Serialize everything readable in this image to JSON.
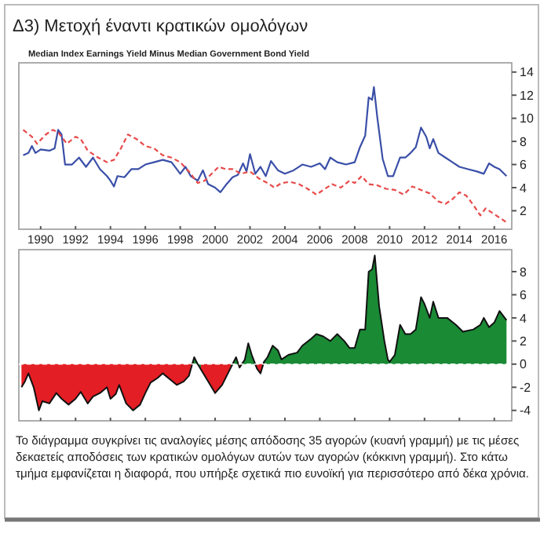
{
  "chart_data": [
    {
      "type": "line",
      "title": "Δ3) Μετοχή έναντι κρατικών ομολόγων",
      "subtitle": "Median Index Earnings Yield Minus Median Government Bond Yield",
      "xlim": [
        1988.75,
        2017.0
      ],
      "xticks": [
        1990,
        1992,
        1994,
        1996,
        1998,
        2000,
        2002,
        2004,
        2006,
        2008,
        2010,
        2012,
        2014,
        2016
      ],
      "ylim": [
        0.4,
        14.8
      ],
      "yticks": [
        2,
        4,
        6,
        8,
        10,
        12,
        14
      ],
      "series": [
        {
          "color": "#3a4fa8",
          "line_style": "solid",
          "x": [
            1989.0,
            1989.3,
            1989.5,
            1989.7,
            1990.0,
            1990.5,
            1990.8,
            1991.0,
            1991.2,
            1991.4,
            1991.8,
            1992.2,
            1992.6,
            1993.0,
            1993.4,
            1993.8,
            1994.0,
            1994.2,
            1994.4,
            1994.8,
            1995.2,
            1995.6,
            1996.0,
            1996.5,
            1997.0,
            1997.5,
            1997.8,
            1998.0,
            1998.3,
            1998.6,
            1999.0,
            1999.3,
            1999.6,
            2000.0,
            2000.3,
            2000.6,
            2001.0,
            2001.3,
            2001.6,
            2001.8,
            2002.0,
            2002.3,
            2002.6,
            2002.9,
            2003.2,
            2003.6,
            2004.0,
            2004.5,
            2005.0,
            2005.5,
            2006.0,
            2006.3,
            2006.6,
            2007.0,
            2007.5,
            2008.0,
            2008.3,
            2008.6,
            2008.8,
            2009.0,
            2009.1,
            2009.3,
            2009.6,
            2009.9,
            2010.2,
            2010.6,
            2010.9,
            2011.2,
            2011.5,
            2011.8,
            2012.1,
            2012.3,
            2012.5,
            2012.8,
            2013.2,
            2013.6,
            2014.0,
            2014.5,
            2015.0,
            2015.4,
            2015.7,
            2016.0,
            2016.3,
            2016.7
          ],
          "values": [
            6.8,
            7.0,
            7.6,
            7.0,
            7.3,
            7.2,
            7.4,
            9.0,
            8.6,
            6.0,
            6.0,
            6.6,
            5.8,
            6.6,
            5.6,
            5.0,
            4.6,
            4.1,
            5.0,
            4.9,
            5.6,
            5.6,
            6.0,
            6.2,
            6.4,
            6.2,
            5.6,
            5.2,
            5.8,
            5.0,
            4.6,
            5.5,
            4.3,
            4.0,
            3.6,
            4.2,
            4.9,
            5.1,
            6.1,
            5.4,
            6.9,
            5.2,
            5.8,
            5.0,
            6.3,
            5.5,
            5.2,
            5.5,
            6.0,
            5.8,
            6.1,
            5.6,
            6.6,
            6.2,
            6.0,
            6.2,
            7.5,
            8.5,
            11.8,
            11.6,
            12.7,
            10.0,
            6.5,
            5.0,
            5.0,
            6.6,
            6.6,
            7.0,
            7.5,
            9.2,
            8.4,
            7.4,
            8.2,
            7.0,
            6.6,
            6.2,
            5.8,
            5.6,
            5.4,
            5.2,
            6.1,
            5.8,
            5.6,
            5.0
          ]
        },
        {
          "color": "#e84a4a",
          "line_style": "dashed",
          "x": [
            1989.0,
            1989.5,
            1989.8,
            1990.3,
            1990.7,
            1991.0,
            1991.5,
            1992.0,
            1992.3,
            1992.7,
            1993.3,
            1993.8,
            1994.2,
            1994.6,
            1995.0,
            1995.5,
            1996.0,
            1996.5,
            1997.0,
            1997.5,
            1998.0,
            1998.5,
            1999.0,
            1999.4,
            1999.8,
            2000.2,
            2000.6,
            2001.0,
            2001.5,
            2002.0,
            2002.5,
            2003.0,
            2003.4,
            2003.8,
            2004.3,
            2004.8,
            2005.3,
            2005.8,
            2006.2,
            2006.7,
            2007.2,
            2007.7,
            2008.0,
            2008.4,
            2008.8,
            2009.3,
            2009.8,
            2010.3,
            2010.8,
            2011.3,
            2011.8,
            2012.3,
            2012.8,
            2013.2,
            2013.6,
            2014.0,
            2014.4,
            2014.8,
            2015.2,
            2015.5,
            2015.9,
            2016.3,
            2016.7
          ],
          "values": [
            9.0,
            8.4,
            7.8,
            8.6,
            9.0,
            8.8,
            7.8,
            8.4,
            8.2,
            7.2,
            6.6,
            6.2,
            6.4,
            7.4,
            8.6,
            8.2,
            7.6,
            7.4,
            6.8,
            6.6,
            6.2,
            5.4,
            4.4,
            4.6,
            5.2,
            5.8,
            5.6,
            5.6,
            5.2,
            5.4,
            4.8,
            4.4,
            4.0,
            4.4,
            4.5,
            4.3,
            3.9,
            3.4,
            3.8,
            4.3,
            4.0,
            4.6,
            4.4,
            5.0,
            4.3,
            4.2,
            3.9,
            3.8,
            3.4,
            4.1,
            3.8,
            3.5,
            2.8,
            2.6,
            3.0,
            3.6,
            3.3,
            2.5,
            1.6,
            2.2,
            1.8,
            1.4,
            1.0
          ]
        }
      ]
    },
    {
      "type": "area",
      "tick_labels": "y",
      "xlim": [
        1988.75,
        2017.0
      ],
      "xticks": [
        1990,
        1992,
        1994,
        1996,
        1998,
        2000,
        2002,
        2004,
        2006,
        2008,
        2010,
        2012,
        2014,
        2016
      ],
      "ylim": [
        -4.9,
        9.9
      ],
      "yticks": [
        -4,
        -2,
        0,
        2,
        4,
        6,
        8
      ],
      "ref_lines": [
        {
          "axis": "y",
          "value": 0,
          "color": "#ffffff",
          "line_style": "dashed"
        }
      ],
      "annotations": [
        "Το διάγραμμα συγκρίνει τις αναλογίες μέσης απόδοσης 35 αγορών (κυανή γραμμή) με τις μέσες δεκαετείς αποδόσεις των κρατικών ομολόγων αυτών των αγορών (κόκκινη γραμμή). Στο κάτω τμήμα εμφανίζεται η διαφορά, που υπήρξε σχετικά πιο ευνοϊκή για περισσότερο από δέκα χρόνια."
      ],
      "series": [
        {
          "colors": [
            "#e31e24",
            "#e31e24",
            "#e31e24",
            "#e31e24",
            "#e31e24",
            "#e31e24",
            "#e31e24",
            "#e31e24",
            "#e31e24",
            "#e31e24",
            "#e31e24",
            "#e31e24",
            "#e31e24",
            "#e31e24",
            "#e31e24",
            "#e31e24",
            "#e31e24",
            "#e31e24",
            "#e31e24",
            "#e31e24",
            "#e31e24",
            "#e31e24",
            "#e31e24",
            "#e31e24",
            "#e31e24",
            "#e31e24",
            "#e31e24",
            "#e31e24",
            "#e31e24",
            "#e31e24",
            "#1a8a35",
            "#1a8a35",
            "#e31e24",
            "#e31e24",
            "#e31e24",
            "#e31e24",
            "#e31e24",
            "#1a8a35",
            "#1a8a35",
            "#e31e24",
            "#1a8a35",
            "#1a8a35",
            "#1a8a35",
            "#e31e24",
            "#e31e24",
            "#1a8a35",
            "#1a8a35",
            "#1a8a35",
            "#1a8a35",
            "#1a8a35",
            "#1a8a35",
            "#1a8a35",
            "#1a8a35",
            "#1a8a35",
            "#1a8a35",
            "#1a8a35",
            "#1a8a35",
            "#1a8a35",
            "#1a8a35",
            "#1a8a35",
            "#1a8a35",
            "#1a8a35",
            "#1a8a35",
            "#1a8a35",
            "#1a8a35",
            "#1a8a35",
            "#1a8a35",
            "#1a8a35",
            "#1a8a35",
            "#1a8a35",
            "#1a8a35",
            "#1a8a35",
            "#1a8a35",
            "#1a8a35",
            "#1a8a35",
            "#1a8a35",
            "#1a8a35",
            "#1a8a35",
            "#1a8a35",
            "#1a8a35",
            "#1a8a35",
            "#1a8a35",
            "#1a8a35",
            "#1a8a35",
            "#1a8a35",
            "#1a8a35",
            "#1a8a35",
            "#1a8a35",
            "#1a8a35",
            "#1a8a35"
          ],
          "x": [
            1988.9,
            1989.1,
            1989.3,
            1989.6,
            1989.9,
            1990.1,
            1990.5,
            1990.9,
            1991.2,
            1991.6,
            1992.0,
            1992.3,
            1992.7,
            1993.0,
            1993.4,
            1993.8,
            1994.0,
            1994.3,
            1994.5,
            1994.9,
            1995.3,
            1995.7,
            1996.0,
            1996.3,
            1996.7,
            1997.0,
            1997.4,
            1997.8,
            1998.2,
            1998.5,
            1998.8,
            1999.0,
            1999.4,
            1999.8,
            2000.0,
            2000.4,
            2000.8,
            2001.0,
            2001.2,
            2001.4,
            2001.7,
            2001.9,
            2002.1,
            2002.4,
            2002.6,
            2002.8,
            2003.0,
            2003.3,
            2003.6,
            2003.8,
            2004.2,
            2004.7,
            2005.0,
            2005.5,
            2005.8,
            2006.2,
            2006.6,
            2007.0,
            2007.4,
            2007.7,
            2008.0,
            2008.3,
            2008.6,
            2008.8,
            2009.0,
            2009.15,
            2009.4,
            2009.7,
            2009.9,
            2010.0,
            2010.3,
            2010.6,
            2010.9,
            2011.2,
            2011.5,
            2011.8,
            2012.0,
            2012.3,
            2012.5,
            2012.8,
            2013.3,
            2013.8,
            2014.2,
            2014.8,
            2015.2,
            2015.4,
            2015.7,
            2016.0,
            2016.3,
            2016.7
          ],
          "values": [
            -2.0,
            -1.5,
            -0.8,
            -2.0,
            -4.0,
            -3.2,
            -3.4,
            -2.5,
            -3.0,
            -3.5,
            -3.0,
            -2.4,
            -3.4,
            -2.8,
            -2.5,
            -2.0,
            -3.0,
            -2.6,
            -1.8,
            -3.4,
            -4.0,
            -3.5,
            -2.5,
            -1.6,
            -1.2,
            -0.8,
            -1.3,
            -1.8,
            -1.5,
            -1.0,
            0.6,
            0,
            -1.0,
            -2.0,
            -2.5,
            -1.8,
            -0.6,
            0,
            0.6,
            -0.3,
            0.4,
            1.8,
            0.8,
            -0.4,
            -0.8,
            0.2,
            0.6,
            1.6,
            1.2,
            0.4,
            0.8,
            1.0,
            1.6,
            2.2,
            2.6,
            2.4,
            2.0,
            2.6,
            2.0,
            1.4,
            1.4,
            3.0,
            3.0,
            8.0,
            8.2,
            9.4,
            5.0,
            2.0,
            0.4,
            0.2,
            0.8,
            3.4,
            2.6,
            2.6,
            3.0,
            5.8,
            5.2,
            4.0,
            5.4,
            4.0,
            4.0,
            3.4,
            2.8,
            3.0,
            3.4,
            4.0,
            3.2,
            3.6,
            4.6,
            3.8
          ]
        }
      ]
    }
  ]
}
